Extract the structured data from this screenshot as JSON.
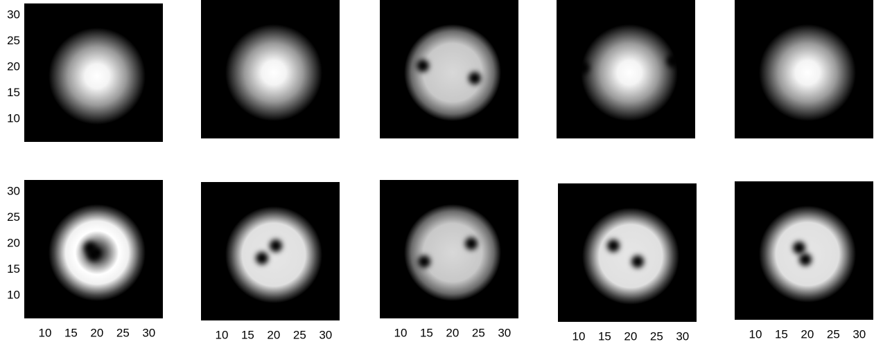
{
  "chart_data": [
    {
      "type": "image",
      "xlim": [
        6,
        32.7
      ],
      "ylim": [
        5.6,
        32.3
      ],
      "yticks": [
        10,
        15,
        20,
        25,
        30
      ]
    },
    {
      "type": "image",
      "xlim": [
        6,
        32.7
      ],
      "ylim": [
        5.6,
        32.3
      ]
    },
    {
      "type": "image",
      "xlim": [
        6,
        32.7
      ],
      "ylim": [
        5.6,
        32.3
      ]
    },
    {
      "type": "image",
      "xlim": [
        6,
        32.7
      ],
      "ylim": [
        5.6,
        32.3
      ]
    },
    {
      "type": "image",
      "xlim": [
        6,
        32.7
      ],
      "ylim": [
        5.6,
        32.3
      ]
    },
    {
      "type": "image",
      "xlim": [
        6,
        32.7
      ],
      "ylim": [
        5.6,
        32.3
      ],
      "yticks": [
        10,
        15,
        20,
        25,
        30
      ],
      "xticks": [
        10,
        15,
        20,
        25,
        30
      ]
    },
    {
      "type": "image",
      "xlim": [
        6,
        32.7
      ],
      "ylim": [
        5.6,
        32.3
      ],
      "xticks": [
        10,
        15,
        20,
        25,
        30
      ]
    },
    {
      "type": "image",
      "xlim": [
        6,
        32.7
      ],
      "ylim": [
        5.6,
        32.3
      ],
      "xticks": [
        10,
        15,
        20,
        25,
        30
      ]
    },
    {
      "type": "image",
      "xlim": [
        6,
        32.7
      ],
      "ylim": [
        5.6,
        32.3
      ],
      "xticks": [
        10,
        15,
        20,
        25,
        30
      ]
    },
    {
      "type": "image",
      "xlim": [
        6,
        32.7
      ],
      "ylim": [
        5.6,
        32.3
      ],
      "xticks": [
        10,
        15,
        20,
        25,
        30
      ]
    }
  ]
}
